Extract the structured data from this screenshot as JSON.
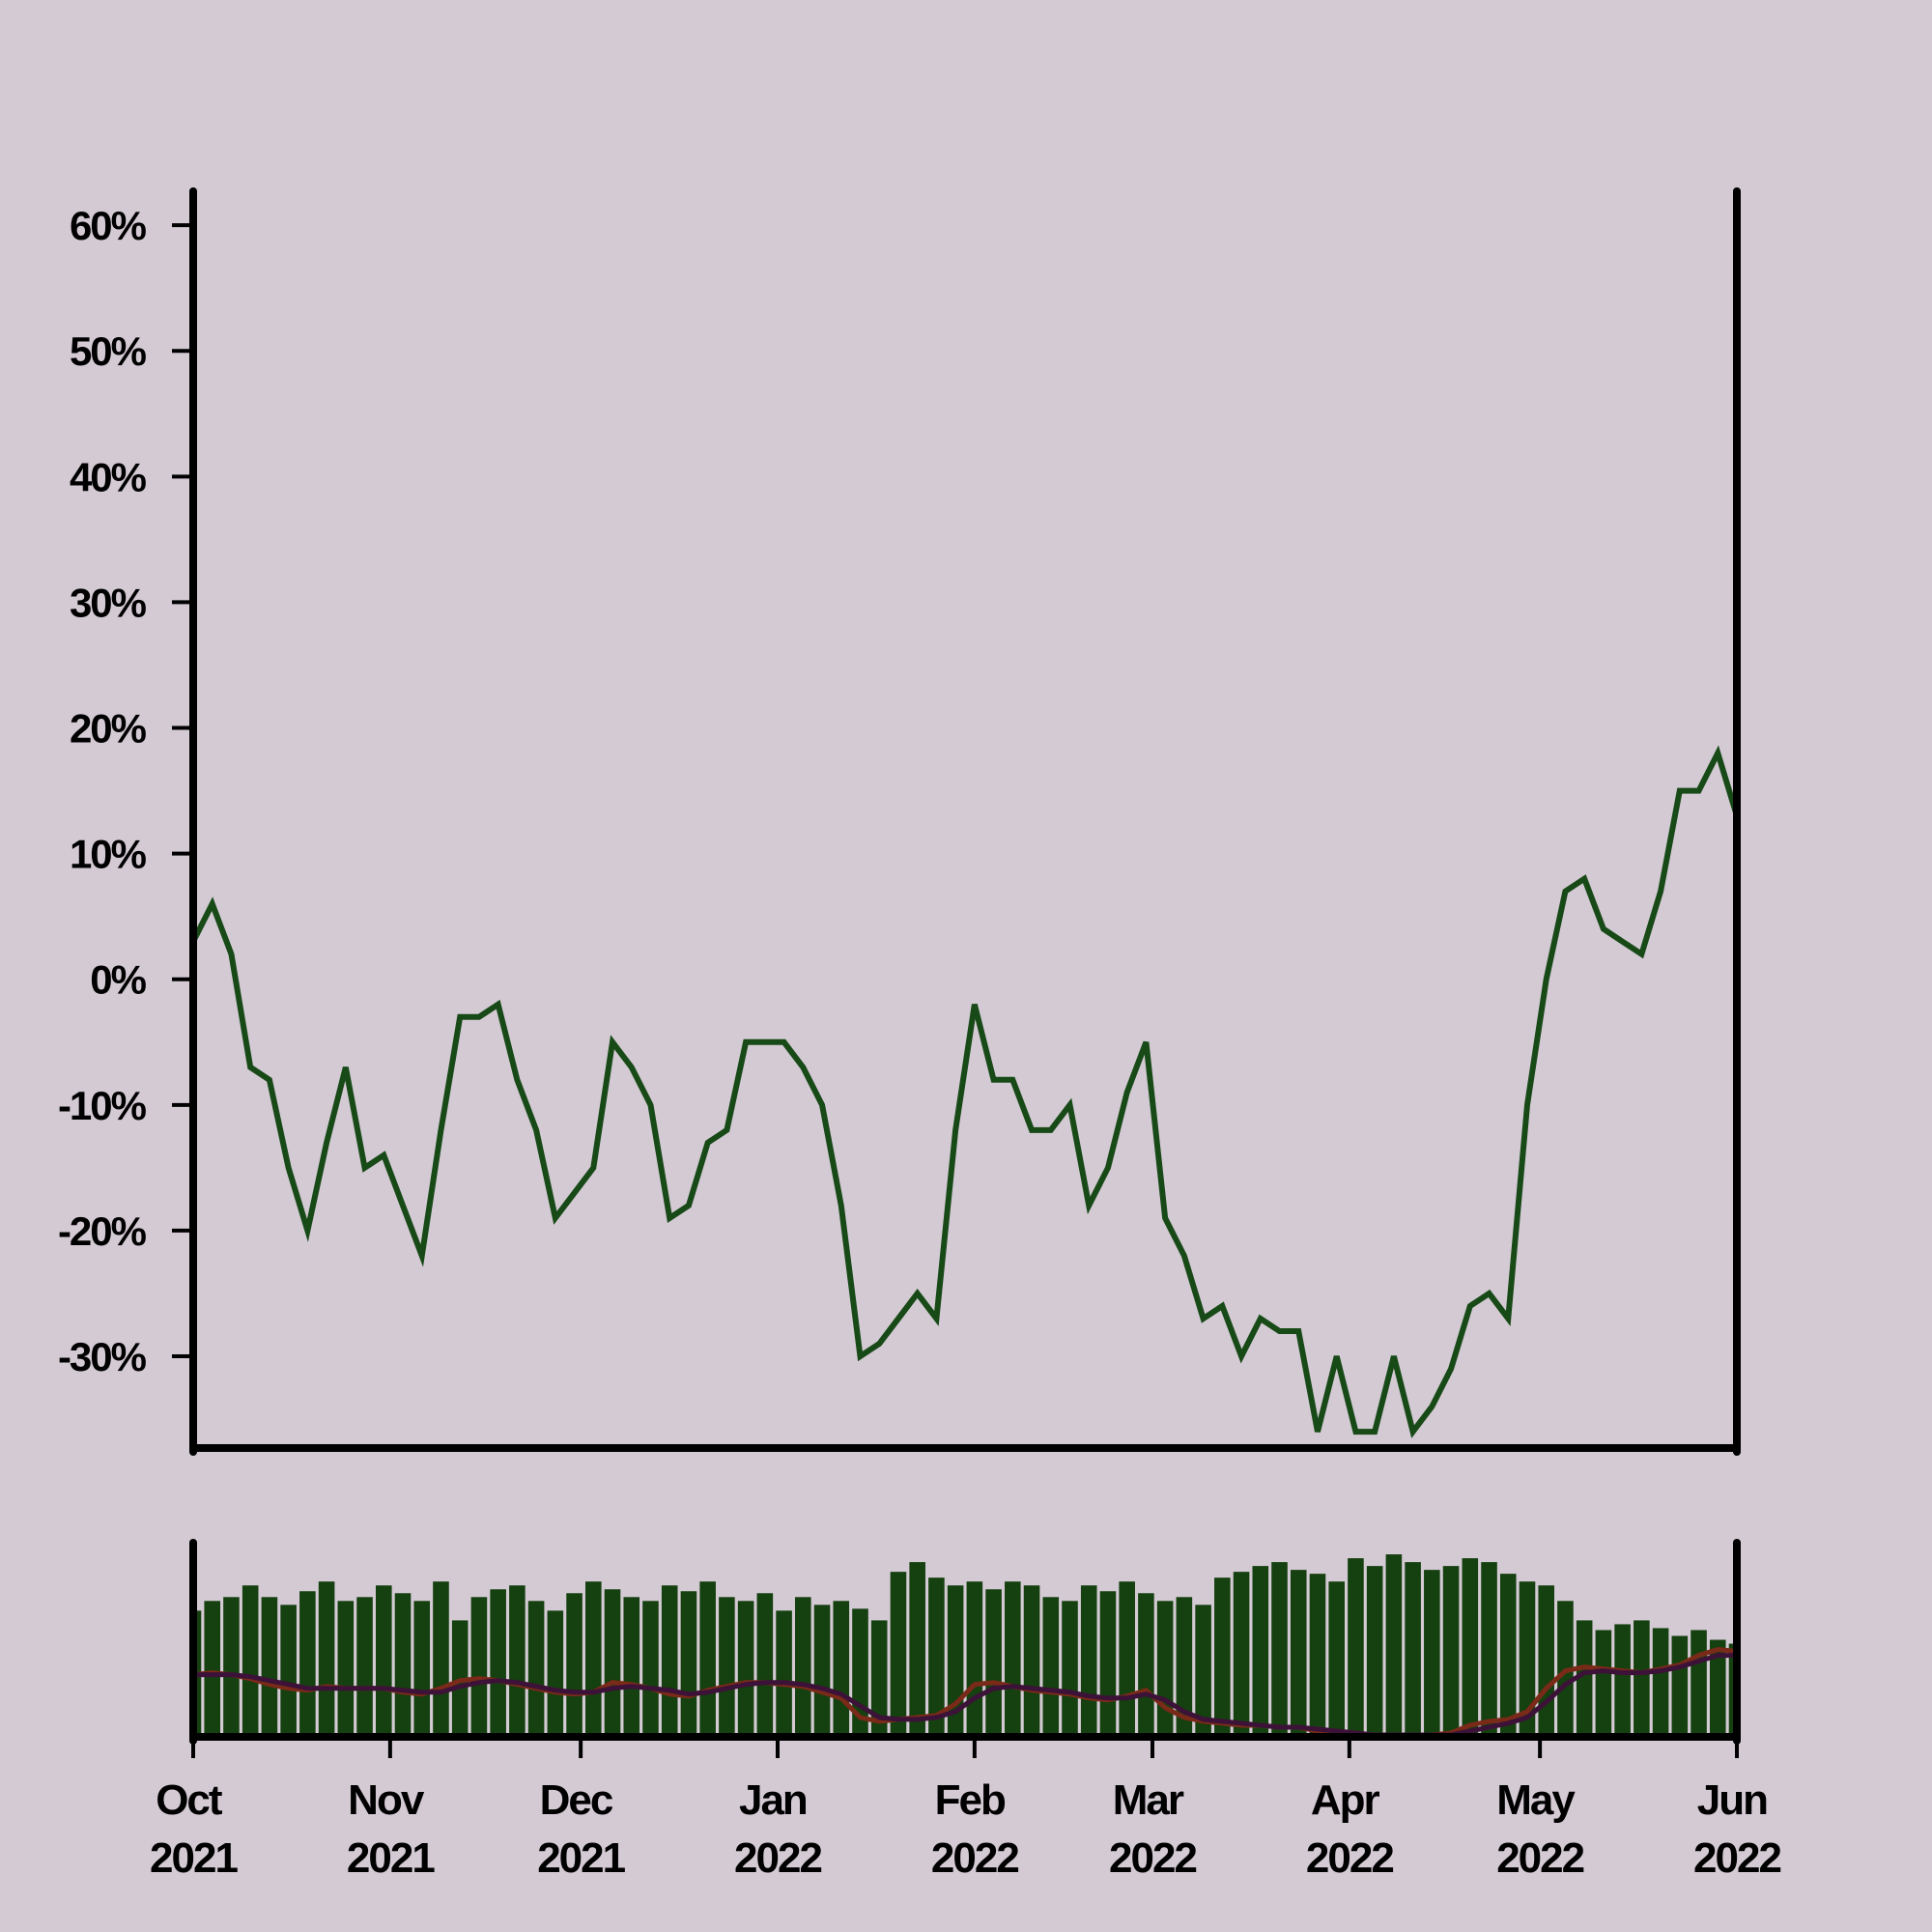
{
  "chart_data": [
    {
      "type": "line",
      "x": [
        0,
        3,
        6,
        9,
        12,
        15,
        18,
        21,
        24,
        27,
        30,
        33,
        36,
        39,
        42,
        45,
        48,
        51,
        54,
        57,
        60,
        63,
        66,
        69,
        72,
        75,
        78,
        81,
        84,
        87,
        90,
        93,
        96,
        99,
        102,
        105,
        108,
        111,
        114,
        117,
        120,
        123,
        126,
        129,
        132,
        135,
        138,
        141,
        144,
        147,
        150,
        153,
        156,
        159,
        162,
        165,
        168,
        171,
        174,
        177,
        180,
        183,
        186,
        189,
        192,
        195,
        198,
        201,
        204,
        207,
        210,
        213,
        216,
        219,
        222,
        225,
        228,
        231,
        234,
        237,
        240,
        243
      ],
      "xlim": [
        0,
        243
      ],
      "ylim": [
        -37.3,
        62.7
      ],
      "yticks": [
        {
          "value": -30,
          "label": "-30%"
        },
        {
          "value": -20,
          "label": "-20%"
        },
        {
          "value": -10,
          "label": "-10%"
        },
        {
          "value": 0,
          "label": "0%"
        },
        {
          "value": 10,
          "label": "10%"
        },
        {
          "value": 20,
          "label": "20%"
        },
        {
          "value": 30,
          "label": "30%"
        },
        {
          "value": 40,
          "label": "40%"
        },
        {
          "value": 50,
          "label": "50%"
        },
        {
          "value": 60,
          "label": "60%"
        }
      ],
      "series": [
        {
          "color": "#174a17",
          "values": [
            3,
            6,
            2,
            -7,
            -8,
            -15,
            -20,
            -13,
            -7,
            -15,
            -14,
            -18,
            -22,
            -12,
            -3,
            -3,
            -2,
            -8,
            -12,
            -19,
            -17,
            -15,
            -5,
            -7,
            -10,
            -19,
            -18,
            -13,
            -12,
            -5,
            -5,
            -5,
            -7,
            -10,
            -18,
            -30,
            -29,
            -27,
            -25,
            -27,
            -12,
            -2,
            -8,
            -8,
            -12,
            -12,
            -10,
            -18,
            -15,
            -9,
            -5,
            -19,
            -22,
            -27,
            -26,
            -30,
            -27,
            -28,
            -28,
            -36,
            -30,
            -36,
            -36,
            -30,
            -36,
            -34,
            -31,
            -26,
            -25,
            -27,
            -10,
            0,
            7,
            8,
            4,
            3,
            2,
            7,
            15,
            15,
            18,
            13
          ]
        }
      ]
    },
    {
      "type": "bar",
      "x": [
        0,
        3,
        6,
        9,
        12,
        15,
        18,
        21,
        24,
        27,
        30,
        33,
        36,
        39,
        42,
        45,
        48,
        51,
        54,
        57,
        60,
        63,
        66,
        69,
        72,
        75,
        78,
        81,
        84,
        87,
        90,
        93,
        96,
        99,
        102,
        105,
        108,
        111,
        114,
        117,
        120,
        123,
        126,
        129,
        132,
        135,
        138,
        141,
        144,
        147,
        150,
        153,
        156,
        159,
        162,
        165,
        168,
        171,
        174,
        177,
        180,
        183,
        186,
        189,
        192,
        195,
        198,
        201,
        204,
        207,
        210,
        213,
        216,
        219,
        222,
        225,
        228,
        231,
        234,
        237,
        240,
        243
      ],
      "xlim": [
        0,
        243
      ],
      "ylim": [
        0,
        100
      ],
      "xticks": [
        {
          "value": 0,
          "label": "Oct 2021"
        },
        {
          "value": 31,
          "label": "Nov 2021"
        },
        {
          "value": 61,
          "label": "Dec 2021"
        },
        {
          "value": 92,
          "label": "Jan 2022"
        },
        {
          "value": 123,
          "label": "Feb 2022"
        },
        {
          "value": 151,
          "label": "Mar 2022"
        },
        {
          "value": 182,
          "label": "Apr 2022"
        },
        {
          "value": 212,
          "label": "May 2022"
        },
        {
          "value": 243,
          "label": "Jun 2022"
        }
      ],
      "series": [
        {
          "type": "bar",
          "color": "#15400f",
          "values": [
            65,
            70,
            72,
            78,
            72,
            68,
            75,
            80,
            70,
            72,
            78,
            74,
            70,
            80,
            60,
            72,
            76,
            78,
            70,
            65,
            74,
            80,
            76,
            72,
            70,
            78,
            75,
            80,
            72,
            70,
            74,
            65,
            72,
            68,
            70,
            66,
            60,
            85,
            90,
            82,
            78,
            80,
            76,
            80,
            78,
            72,
            70,
            78,
            75,
            80,
            74,
            70,
            72,
            68,
            82,
            85,
            88,
            90,
            86,
            84,
            80,
            92,
            88,
            94,
            90,
            86,
            88,
            92,
            90,
            84,
            80,
            78,
            70,
            60,
            55,
            58,
            60,
            56,
            52,
            55,
            50,
            48
          ]
        },
        {
          "type": "line",
          "color": "#7a2a18",
          "values": [
            32,
            33,
            32,
            30,
            27,
            25,
            24,
            26,
            25,
            25,
            25,
            23,
            22,
            25,
            29,
            30,
            29,
            27,
            25,
            23,
            22,
            23,
            28,
            27,
            25,
            22,
            21,
            24,
            26,
            28,
            28,
            27,
            26,
            23,
            20,
            10,
            8,
            9,
            10,
            11,
            17,
            27,
            28,
            26,
            24,
            23,
            22,
            20,
            19,
            21,
            24,
            15,
            10,
            8,
            7,
            6,
            6,
            5,
            5,
            3,
            2,
            1,
            1,
            1,
            1,
            1,
            2,
            6,
            8,
            9,
            13,
            25,
            34,
            36,
            35,
            34,
            33,
            35,
            37,
            42,
            45,
            44
          ]
        },
        {
          "type": "line",
          "color": "#3c1238",
          "values": [
            32,
            32,
            32,
            31,
            29,
            27,
            25,
            25,
            25,
            25,
            25,
            24,
            23,
            23,
            26,
            28,
            29,
            28,
            26,
            24,
            23,
            23,
            25,
            26,
            25,
            24,
            22,
            23,
            25,
            27,
            28,
            28,
            27,
            25,
            22,
            16,
            10,
            9,
            9,
            10,
            13,
            20,
            25,
            26,
            25,
            24,
            23,
            21,
            20,
            20,
            22,
            19,
            13,
            9,
            8,
            7,
            6,
            5,
            5,
            4,
            3,
            2,
            1,
            1,
            1,
            1,
            1,
            3,
            5,
            7,
            10,
            18,
            27,
            33,
            34,
            33,
            33,
            34,
            36,
            39,
            42,
            42
          ]
        }
      ]
    }
  ]
}
